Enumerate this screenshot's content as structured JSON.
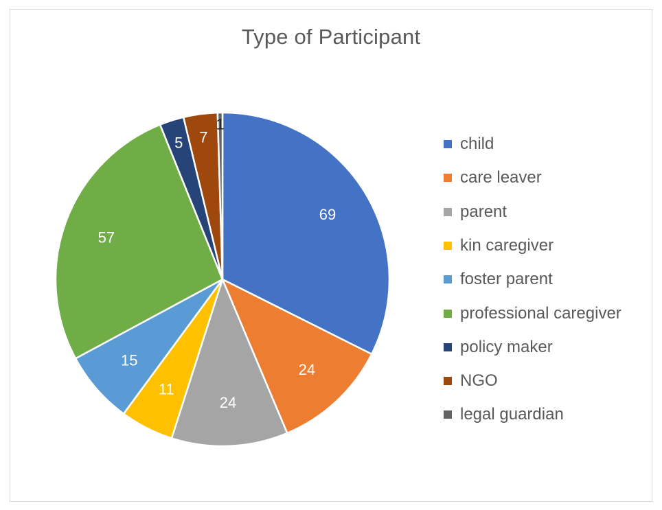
{
  "chart_data": {
    "type": "pie",
    "title": "Type of Participant",
    "legend_position": "right",
    "start_angle_deg": 0,
    "direction": "clockwise",
    "slices": [
      {
        "label": "child",
        "value": 69,
        "color": "#4472C4",
        "label_color": "#ffffff"
      },
      {
        "label": "care leaver",
        "value": 24,
        "color": "#ED7D31",
        "label_color": "#ffffff"
      },
      {
        "label": "parent",
        "value": 24,
        "color": "#A5A5A5",
        "label_color": "#ffffff"
      },
      {
        "label": "kin caregiver",
        "value": 11,
        "color": "#FFC000",
        "label_color": "#ffffff"
      },
      {
        "label": "foster parent",
        "value": 15,
        "color": "#5B9BD5",
        "label_color": "#ffffff"
      },
      {
        "label": "professional caregiver",
        "value": 57,
        "color": "#70AD47",
        "label_color": "#ffffff"
      },
      {
        "label": "policy maker",
        "value": 5,
        "color": "#264478",
        "label_color": "#ffffff"
      },
      {
        "label": "NGO",
        "value": 7,
        "color": "#9E480E",
        "label_color": "#ffffff"
      },
      {
        "label": "legal guardian",
        "value": 1,
        "color": "#636363",
        "label_color": "#262626"
      }
    ]
  }
}
